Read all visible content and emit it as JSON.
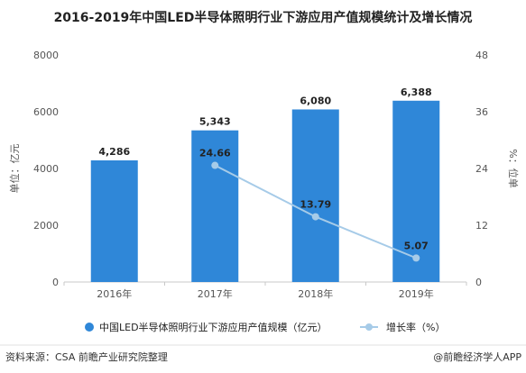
{
  "title": "2016-2019年中国LED半导体照明行业下游应用产值规模统计及增长情况",
  "footer": {
    "source": "资料来源：CSA 前瞻产业研究院整理",
    "credit": "@前瞻经济学人APP"
  },
  "chart_data": {
    "type": "bar",
    "categories": [
      "2016年",
      "2017年",
      "2018年",
      "2019年"
    ],
    "series": [
      {
        "name": "中国LED半导体照明行业下游应用产值规模（亿元）",
        "kind": "bar",
        "axis": "left",
        "values": [
          4286,
          5343,
          6080,
          6388
        ],
        "labels": [
          "4,286",
          "5,343",
          "6,080",
          "6,388"
        ]
      },
      {
        "name": "增长率（%）",
        "kind": "line",
        "axis": "right",
        "values": [
          null,
          24.66,
          13.79,
          5.07
        ],
        "labels": [
          "",
          "24.66",
          "13.79",
          "5.07"
        ]
      }
    ],
    "ylabel": "单位：亿元",
    "ylabel_right": "%：位单",
    "ylim": [
      0,
      8000
    ],
    "yticks": [
      "0",
      "2000",
      "4000",
      "6000",
      "8000"
    ],
    "ylim_right": [
      0,
      48
    ],
    "yticks_right": [
      "0",
      "12",
      "24",
      "36",
      "48"
    ],
    "colors": {
      "bar": "#2f87d8",
      "line": "#a6cbe8",
      "marker": "#a6cbe8",
      "axis": "#c8c8c8",
      "text": "#222222"
    },
    "grid": false,
    "legend_position": "bottom"
  }
}
